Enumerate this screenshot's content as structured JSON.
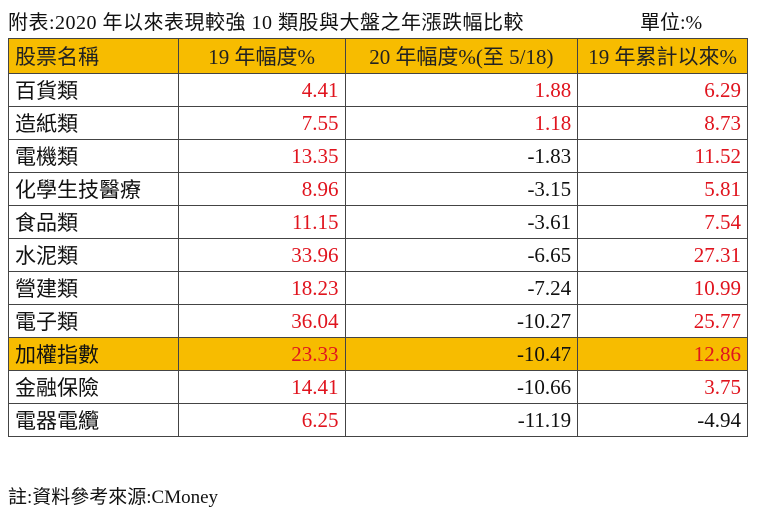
{
  "title": "附表:2020 年以來表現較強 10 類股與大盤之年漲跌幅比較",
  "unit": "單位:%",
  "table": {
    "header": [
      "股票名稱",
      "19 年幅度%",
      "20 年幅度%(至 5/18)",
      "19 年累計以來%"
    ],
    "rows": [
      [
        "百貨類",
        4.41,
        1.88,
        6.29
      ],
      [
        "造紙類",
        7.55,
        1.18,
        8.73
      ],
      [
        "電機類",
        13.35,
        -1.83,
        11.52
      ],
      [
        "化學生技醫療",
        8.96,
        -3.15,
        5.81
      ],
      [
        "食品類",
        11.15,
        -3.61,
        7.54
      ],
      [
        "水泥類",
        33.96,
        -6.65,
        27.31
      ],
      [
        "營建類",
        18.23,
        -7.24,
        10.99
      ],
      [
        "電子類",
        36.04,
        -10.27,
        25.77
      ],
      [
        "加權指數",
        23.33,
        -10.47,
        12.86
      ],
      [
        "金融保險",
        14.41,
        -10.66,
        3.75
      ],
      [
        "電器電纜",
        6.25,
        -11.19,
        -4.94
      ]
    ]
  },
  "note": "註:資料參考來源:CMoney"
}
